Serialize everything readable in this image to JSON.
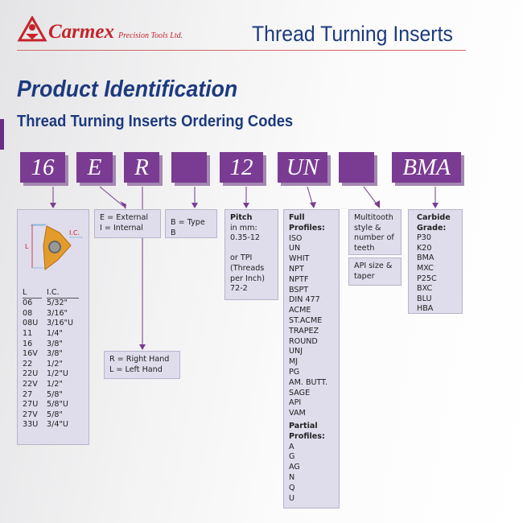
{
  "header": {
    "brand": "Carmex",
    "brand_sub": "Precision Tools Ltd.",
    "title": "Thread Turning Inserts"
  },
  "page": {
    "title": "Product Identification",
    "subtitle": "Thread Turning Inserts Ordering Codes"
  },
  "codes": [
    "16",
    "E",
    "R",
    "",
    "12",
    "UN",
    "",
    "BMA"
  ],
  "size_box": {
    "diagram_L": "L",
    "diagram_IC": "I.C.",
    "col_L": "L",
    "col_IC": "I.C.",
    "rows": [
      [
        "06",
        "5/32\""
      ],
      [
        "08",
        "3/16\""
      ],
      [
        "08U",
        "3/16\"U"
      ],
      [
        "11",
        "1/4\""
      ],
      [
        "16",
        "3/8\""
      ],
      [
        "16V",
        "3/8\""
      ],
      [
        "22",
        "1/2\""
      ],
      [
        "22U",
        "1/2\"U"
      ],
      [
        "22V",
        "1/2\""
      ],
      [
        "27",
        "5/8\""
      ],
      [
        "27U",
        "5/8\"U"
      ],
      [
        "27V",
        "5/8\""
      ],
      [
        "33U",
        "3/4\"U"
      ]
    ]
  },
  "type_box": [
    "E = External",
    "I = Internal"
  ],
  "hand_box": [
    "R = Right Hand",
    "L = Left Hand"
  ],
  "typeb_box": "B = Type B",
  "pitch_box": {
    "title": "Pitch",
    "lines": [
      "in mm:",
      "0.35-12",
      "",
      "or TPI",
      "(Threads",
      "per Inch)",
      "72-2"
    ]
  },
  "profile_box": {
    "full_title": "Full Profiles:",
    "full": [
      "ISO",
      "UN",
      "WHIT",
      "NPT",
      "NPTF",
      "BSPT",
      "DIN 477",
      "ACME",
      "ST.ACME",
      "TRAPEZ",
      "ROUND",
      "UNJ",
      "MJ",
      "PG",
      "AM. BUTT.",
      "SAGE",
      "API",
      "VAM"
    ],
    "partial_title": "Partial Profiles:",
    "partial": [
      "A",
      "G",
      "AG",
      "N",
      "Q",
      "U"
    ]
  },
  "multitooth_box": "Multitooth style & number of teeth",
  "api_box": "API size & taper",
  "grade_box": {
    "title": "Carbide Grade:",
    "grades": [
      "P30",
      "K20",
      "BMA",
      "MXC",
      "P25C",
      "BXC",
      "BLU",
      "HBA"
    ]
  },
  "colors": {
    "code_purple": "#7a3b92",
    "box_bg": "#dfdcec",
    "title_blue": "#1d3a7e",
    "brand_red": "#c4242a"
  }
}
